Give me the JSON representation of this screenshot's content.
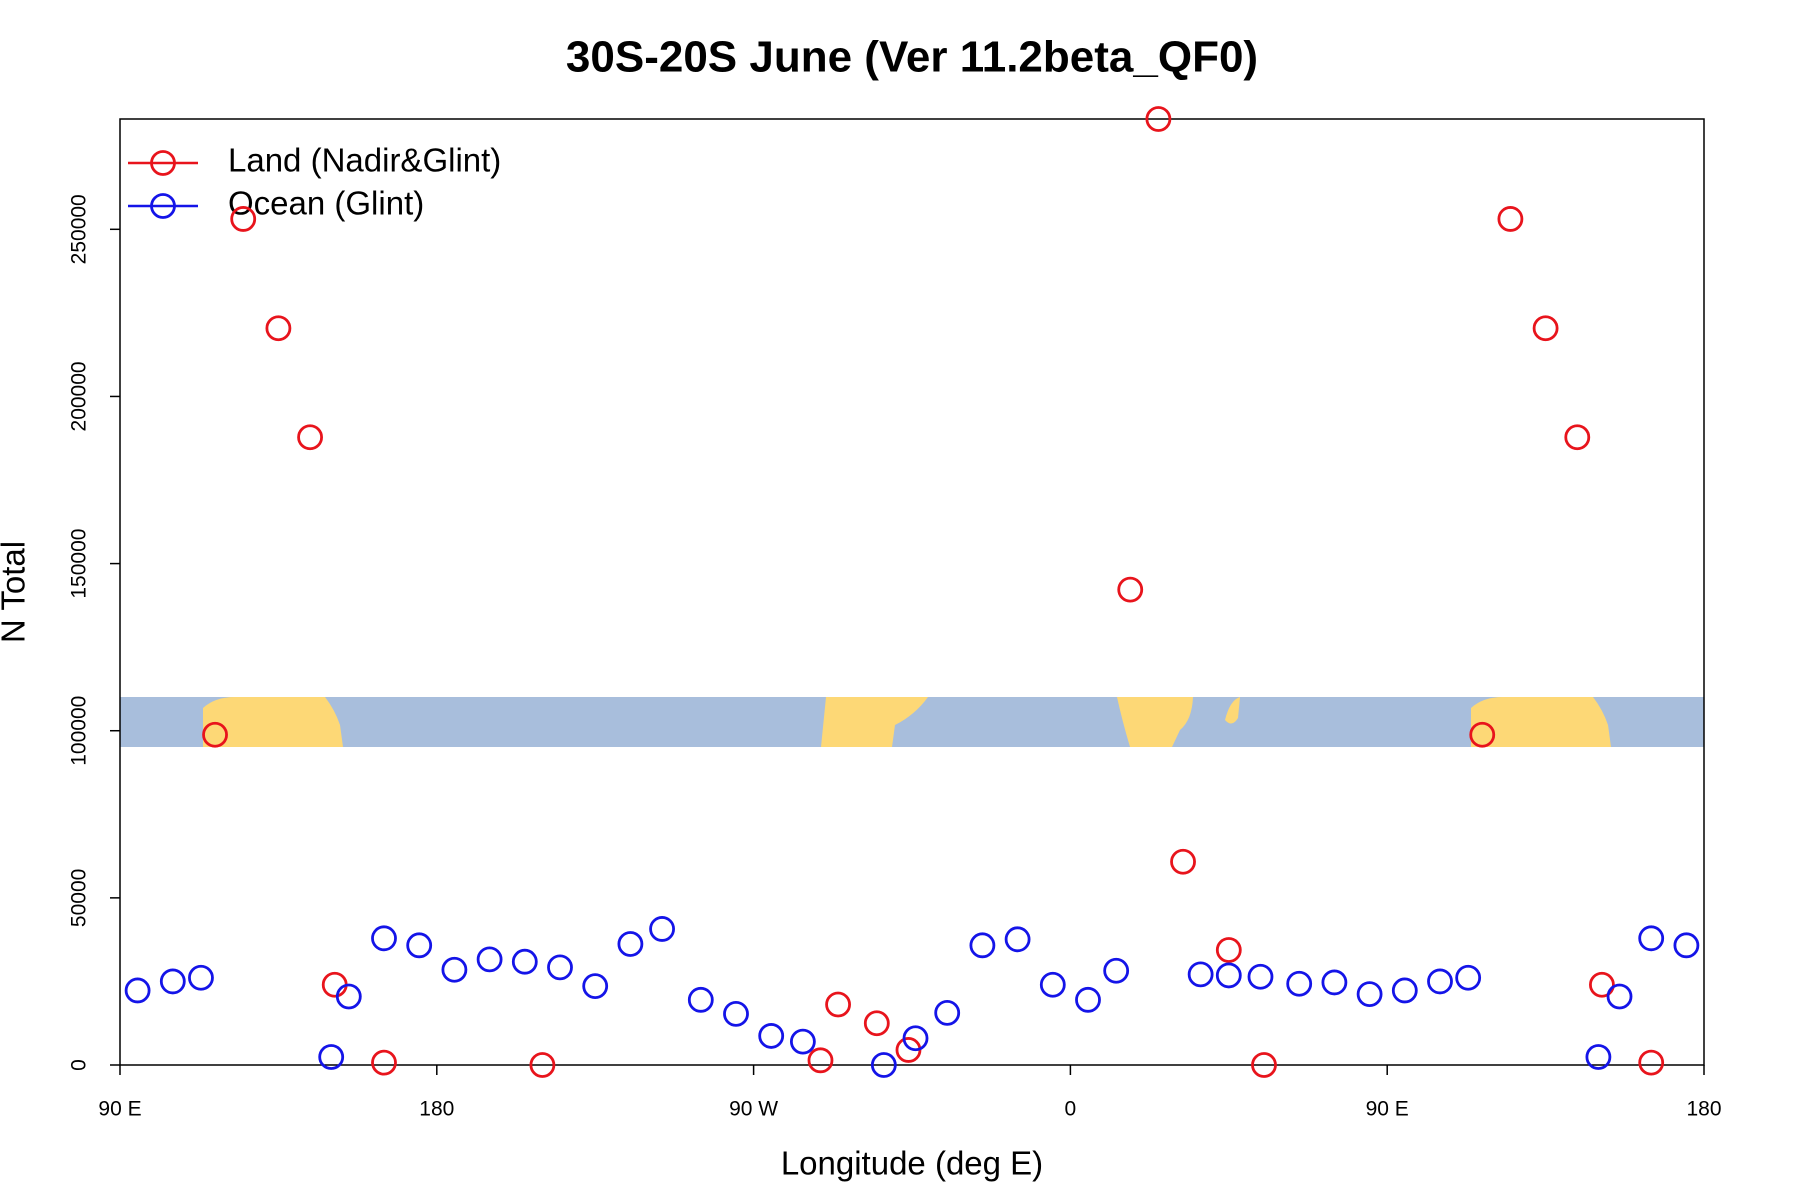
{
  "chart_data": {
    "type": "scatter",
    "title": "30S-20S June (Ver 11.2beta_QF0)",
    "xlabel": "Longitude (deg E)",
    "ylabel": "N Total",
    "xlim": [
      90,
      540
    ],
    "xticks": [
      {
        "value": 90,
        "label": "90 E"
      },
      180,
      {
        "value": 270,
        "label": "90 W"
      },
      {
        "value": 360,
        "label": "0"
      },
      {
        "value": 450,
        "label": "90 E"
      },
      {
        "value": 540,
        "label": "180"
      }
    ],
    "ylim": [
      0,
      283000
    ],
    "yticks": [
      0,
      50000,
      100000,
      150000,
      200000,
      250000
    ],
    "legend": "top-left",
    "series": [
      {
        "name": "Land (Nadir&Glint)",
        "color": "#e8141c",
        "x": [
          117,
          125,
          135,
          144,
          151,
          165,
          210,
          289,
          294,
          305,
          314,
          377,
          385,
          392,
          405,
          415,
          477,
          485,
          495,
          504,
          511,
          525
        ],
        "values": [
          98800,
          253100,
          220400,
          187800,
          24000,
          700,
          0,
          1400,
          18100,
          12500,
          4500,
          142200,
          283000,
          60800,
          34400,
          0,
          98800,
          253100,
          220400,
          187800,
          24000,
          700
        ]
      },
      {
        "name": "Ocean (Glint)",
        "color": "#1414e8",
        "x": [
          95,
          105,
          113,
          150,
          155,
          165,
          175,
          185,
          195,
          205,
          215,
          225,
          235,
          244,
          255,
          265,
          275,
          284,
          307,
          316,
          325,
          335,
          345,
          355,
          365,
          373,
          397,
          405,
          414,
          425,
          435,
          445,
          455,
          465,
          473,
          510,
          516,
          525,
          535
        ],
        "values": [
          22300,
          25000,
          26100,
          2400,
          20500,
          37900,
          35800,
          28500,
          31600,
          30900,
          29200,
          23600,
          36200,
          40700,
          19500,
          15300,
          8700,
          7000,
          0,
          8000,
          15600,
          35800,
          37600,
          24000,
          19500,
          28200,
          27100,
          26800,
          26400,
          24300,
          24700,
          21200,
          22300,
          25000,
          26100,
          2400,
          20500,
          37900,
          35800
        ]
      }
    ]
  }
}
